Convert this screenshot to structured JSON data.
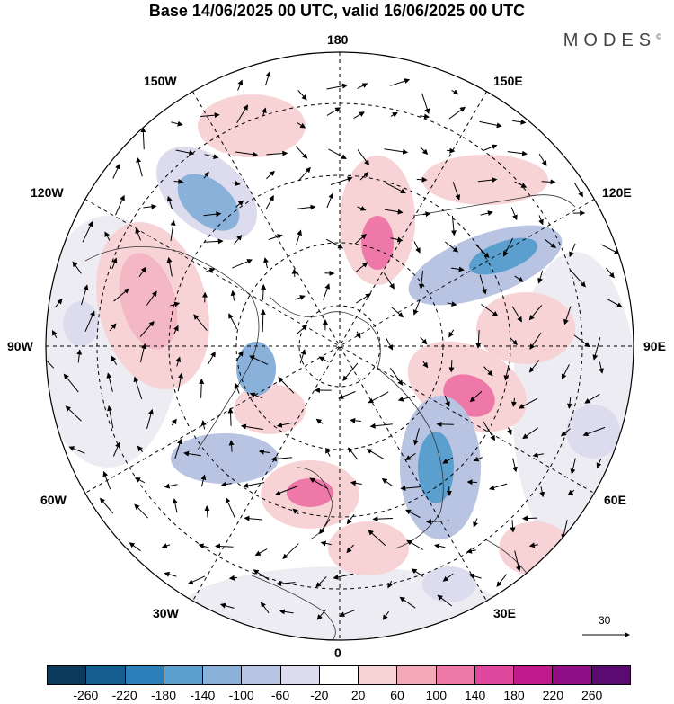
{
  "title": "Base 14/06/2025 00 UTC, valid 16/06/2025 00 UTC",
  "brand": "MODES",
  "brand_mark": "©",
  "map": {
    "projection": "north-polar-stereographic",
    "longitude_labels": {
      "top": "180",
      "top_right": "150E",
      "right_upper": "120E",
      "right": "90E",
      "right_lower": "60E",
      "bottom_right": "30E",
      "bottom": "0",
      "bottom_left": "30W",
      "left_lower": "60W",
      "left": "90W",
      "left_upper": "120W",
      "top_left": "150W"
    },
    "graticule": "dashed",
    "wind_vector_reference": "30"
  },
  "colorbar": {
    "colors": [
      "#0b3b5c",
      "#135e8f",
      "#2a7fb8",
      "#5a9fcd",
      "#8ab1da",
      "#b9c3e2",
      "#dddcee",
      "#ffffff",
      "#f7d3d6",
      "#f3a9b8",
      "#ee79a8",
      "#e0489d",
      "#c01a8c",
      "#8f0e86",
      "#5b0a72"
    ],
    "tick_labels": [
      "-260",
      "-220",
      "-180",
      "-140",
      "-100",
      "-60",
      "-20",
      "20",
      "60",
      "100",
      "140",
      "180",
      "220",
      "260"
    ]
  }
}
